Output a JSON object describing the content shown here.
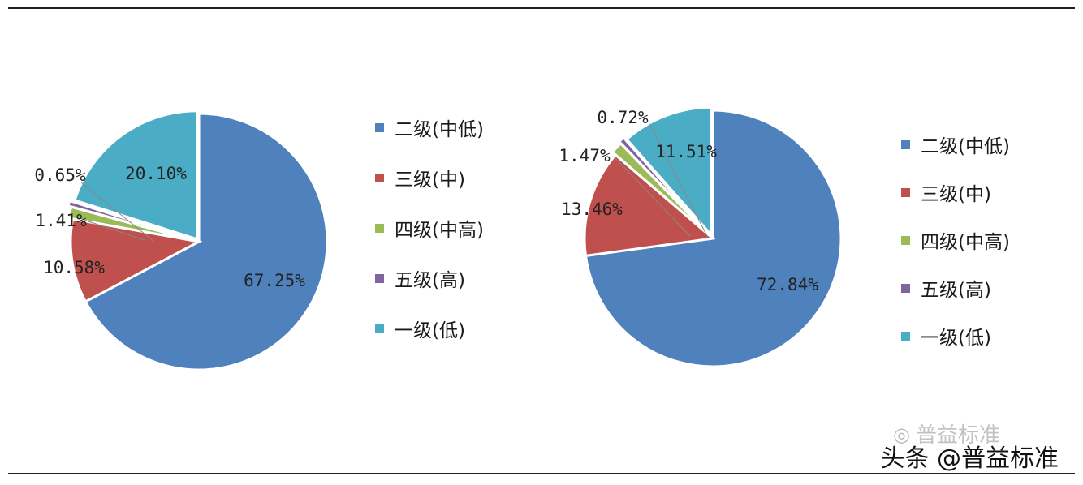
{
  "chart_data": [
    {
      "type": "pie",
      "title": "",
      "categories": [
        "二级(中低)",
        "三级(中)",
        "四级(中高)",
        "五级(高)",
        "一级(低)"
      ],
      "values": [
        67.25,
        10.58,
        1.41,
        0.65,
        20.1
      ],
      "value_labels": [
        "67.25%",
        "10.58%",
        "1.41%",
        "0.65%",
        "20.10%"
      ],
      "colors": [
        "#4f81bd",
        "#c0504d",
        "#9bbb59",
        "#8064a2",
        "#4bacc6"
      ],
      "legend": "right"
    },
    {
      "type": "pie",
      "title": "",
      "categories": [
        "二级(中低)",
        "三级(中)",
        "四级(中高)",
        "五级(高)",
        "一级(低)"
      ],
      "values": [
        72.84,
        13.46,
        1.47,
        0.72,
        11.51
      ],
      "value_labels": [
        "72.84%",
        "13.46%",
        "1.47%",
        "0.72%",
        "11.51%"
      ],
      "colors": [
        "#4f81bd",
        "#c0504d",
        "#9bbb59",
        "#8064a2",
        "#4bacc6"
      ],
      "legend": "right"
    }
  ],
  "watermark": {
    "text": "头条 @普益标准",
    "ghost_text": "普益标准",
    "logo_icon": "wechat-icon"
  }
}
